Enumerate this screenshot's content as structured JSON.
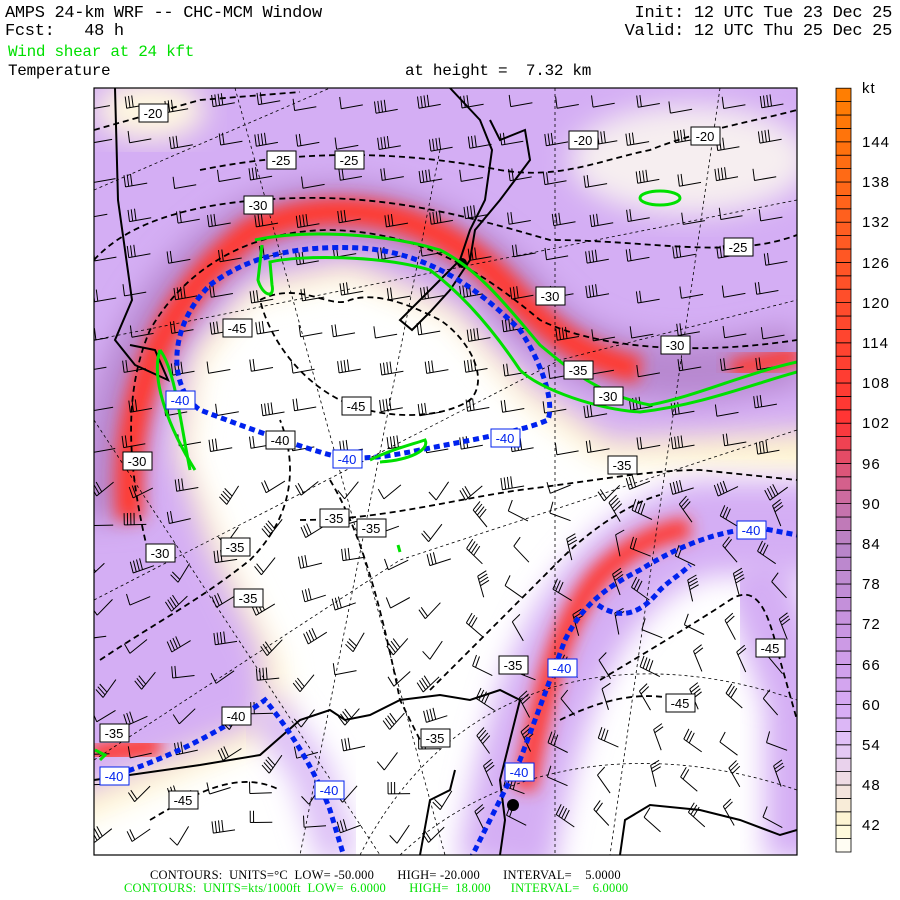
{
  "header": {
    "title": "AMPS 24-km WRF -- CHC-MCM Window",
    "forecast": "Fcst:   48 h",
    "init": "Init: 12 UTC Tue 23 Dec 25",
    "valid": "Valid: 12 UTC Thu 25 Dec 25",
    "overlay_field": "Wind shear at 24 kft",
    "base_field": "Temperature",
    "level": "at height =  7.32 km"
  },
  "footer": {
    "temp_contours": "CONTOURS:  UNITS=°C  LOW= -50.000       HIGH= -20.000       INTERVAL=    5.0000",
    "shear_contours": "CONTOURS:  UNITS=kts/1000ft  LOW=  6.0000       HIGH=  18.000      INTERVAL=    6.0000"
  },
  "colorbar": {
    "unit": "kt",
    "ticks": [
      "144",
      "138",
      "132",
      "126",
      "120",
      "114",
      "108",
      "102",
      "96",
      "90",
      "84",
      "78",
      "72",
      "66",
      "60",
      "54",
      "48",
      "42"
    ],
    "palette": [
      [
        38,
        "#ffffff"
      ],
      [
        42,
        "#fff8d0"
      ],
      [
        48,
        "#f0e0e0"
      ],
      [
        54,
        "#e2c4f8"
      ],
      [
        60,
        "#d6aaf4"
      ],
      [
        72,
        "#c894e0"
      ],
      [
        84,
        "#b884c8"
      ],
      [
        90,
        "#c870a8"
      ],
      [
        96,
        "#e05070"
      ],
      [
        102,
        "#ff3434"
      ],
      [
        114,
        "#ff4430"
      ],
      [
        132,
        "#ff5e20"
      ],
      [
        152,
        "#ff8000"
      ]
    ]
  },
  "colors": {
    "temp_contour": "#000000",
    "minus40_contour": "#0000ff",
    "shear_contour": "#00e000",
    "jet_core": "#ff3a30",
    "jet_fringe": "#d0a8f0"
  },
  "contour_labels": {
    "black": [
      "-20",
      "-25",
      "-25",
      "-30",
      "-45",
      "-45",
      "-40",
      "-20",
      "-20",
      "-25",
      "-30",
      "-30",
      "-35",
      "-30",
      "-35",
      "-35",
      "-35",
      "-30",
      "-35",
      "-35",
      "-35",
      "-45",
      "-45",
      "-35",
      "-35",
      "-45",
      "-40",
      "-30"
    ],
    "blue": [
      "-40",
      "-40",
      "-40",
      "-40",
      "-40",
      "-40",
      "-40",
      "-40"
    ]
  }
}
